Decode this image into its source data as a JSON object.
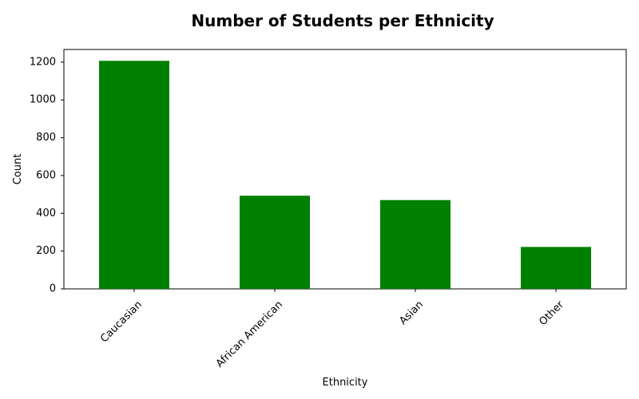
{
  "chart_data": {
    "type": "bar",
    "title": "Number of Students per Ethnicity",
    "xlabel": "Ethnicity",
    "ylabel": "Count",
    "categories": [
      "Caucasian",
      "African American",
      "Asian",
      "Other"
    ],
    "values": [
      1207,
      493,
      470,
      222
    ],
    "ylim": [
      0,
      1267
    ],
    "yticks": [
      0,
      200,
      400,
      600,
      800,
      1000,
      1200
    ],
    "bar_color": "#008000",
    "grid": false,
    "legend": "none",
    "xtick_rotation": 45
  }
}
